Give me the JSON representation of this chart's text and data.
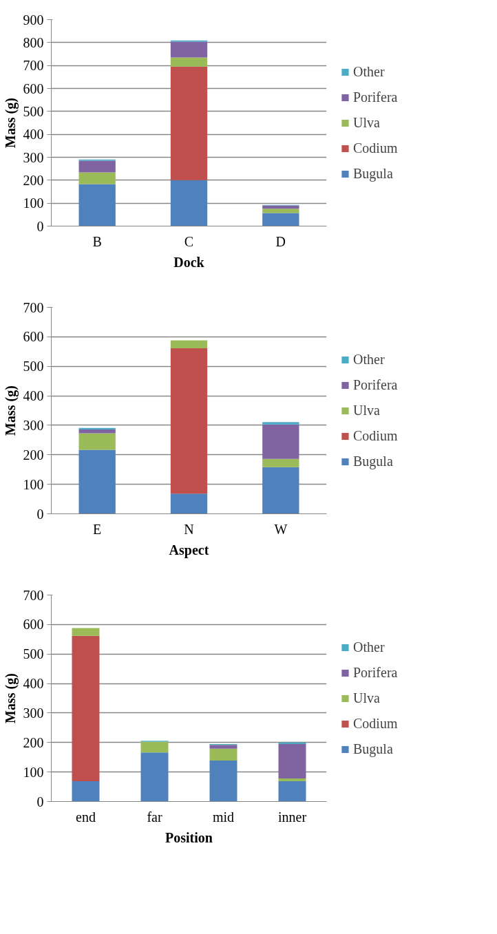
{
  "chart_data": [
    {
      "type": "bar",
      "stacked": true,
      "categories": [
        "B",
        "C",
        "D"
      ],
      "xlabel": "Dock",
      "ylabel": "Mass (g)",
      "ylim": [
        0,
        900
      ],
      "yticks": [
        0,
        100,
        200,
        300,
        400,
        500,
        600,
        700,
        800,
        900
      ],
      "grid": "y",
      "legend": "right",
      "series": [
        {
          "name": "Bugula",
          "color": "#4f81bd",
          "values": [
            183,
            200,
            57
          ]
        },
        {
          "name": "Codium",
          "color": "#c0504d",
          "values": [
            null,
            495,
            null
          ]
        },
        {
          "name": "Ulva",
          "color": "#9bbb59",
          "values": [
            51,
            40,
            19
          ]
        },
        {
          "name": "Porifera",
          "color": "#8064a2",
          "values": [
            51,
            69,
            14
          ]
        },
        {
          "name": "Other",
          "color": "#4bacc6",
          "values": [
            5,
            5,
            2
          ]
        }
      ]
    },
    {
      "type": "bar",
      "stacked": true,
      "categories": [
        "E",
        "N",
        "W"
      ],
      "xlabel": "Aspect",
      "ylabel": "Mass (g)",
      "ylim": [
        0,
        700
      ],
      "yticks": [
        0,
        100,
        200,
        300,
        400,
        500,
        600,
        700
      ],
      "grid": "y",
      "legend": "right",
      "series": [
        {
          "name": "Bugula",
          "color": "#4f81bd",
          "values": [
            217,
            68,
            158
          ]
        },
        {
          "name": "Codium",
          "color": "#c0504d",
          "values": [
            null,
            493,
            null
          ]
        },
        {
          "name": "Ulva",
          "color": "#9bbb59",
          "values": [
            56,
            27,
            28
          ]
        },
        {
          "name": "Porifera",
          "color": "#8064a2",
          "values": [
            13,
            null,
            117
          ]
        },
        {
          "name": "Other",
          "color": "#4bacc6",
          "values": [
            5,
            null,
            8
          ]
        }
      ]
    },
    {
      "type": "bar",
      "stacked": true,
      "categories": [
        "end",
        "far",
        "mid",
        "inner"
      ],
      "xlabel": "Position",
      "ylabel": "Mass (g)",
      "ylim": [
        0,
        700
      ],
      "yticks": [
        0,
        100,
        200,
        300,
        400,
        500,
        600,
        700
      ],
      "grid": "y",
      "legend": "right",
      "series": [
        {
          "name": "Bugula",
          "color": "#4f81bd",
          "values": [
            69,
            166,
            139,
            69
          ]
        },
        {
          "name": "Codium",
          "color": "#c0504d",
          "values": [
            493,
            null,
            null,
            null
          ]
        },
        {
          "name": "Ulva",
          "color": "#9bbb59",
          "values": [
            26,
            37,
            40,
            9
          ]
        },
        {
          "name": "Porifera",
          "color": "#8064a2",
          "values": [
            null,
            null,
            13,
            117
          ]
        },
        {
          "name": "Other",
          "color": "#4bacc6",
          "values": [
            null,
            3,
            3,
            5
          ]
        }
      ]
    }
  ]
}
